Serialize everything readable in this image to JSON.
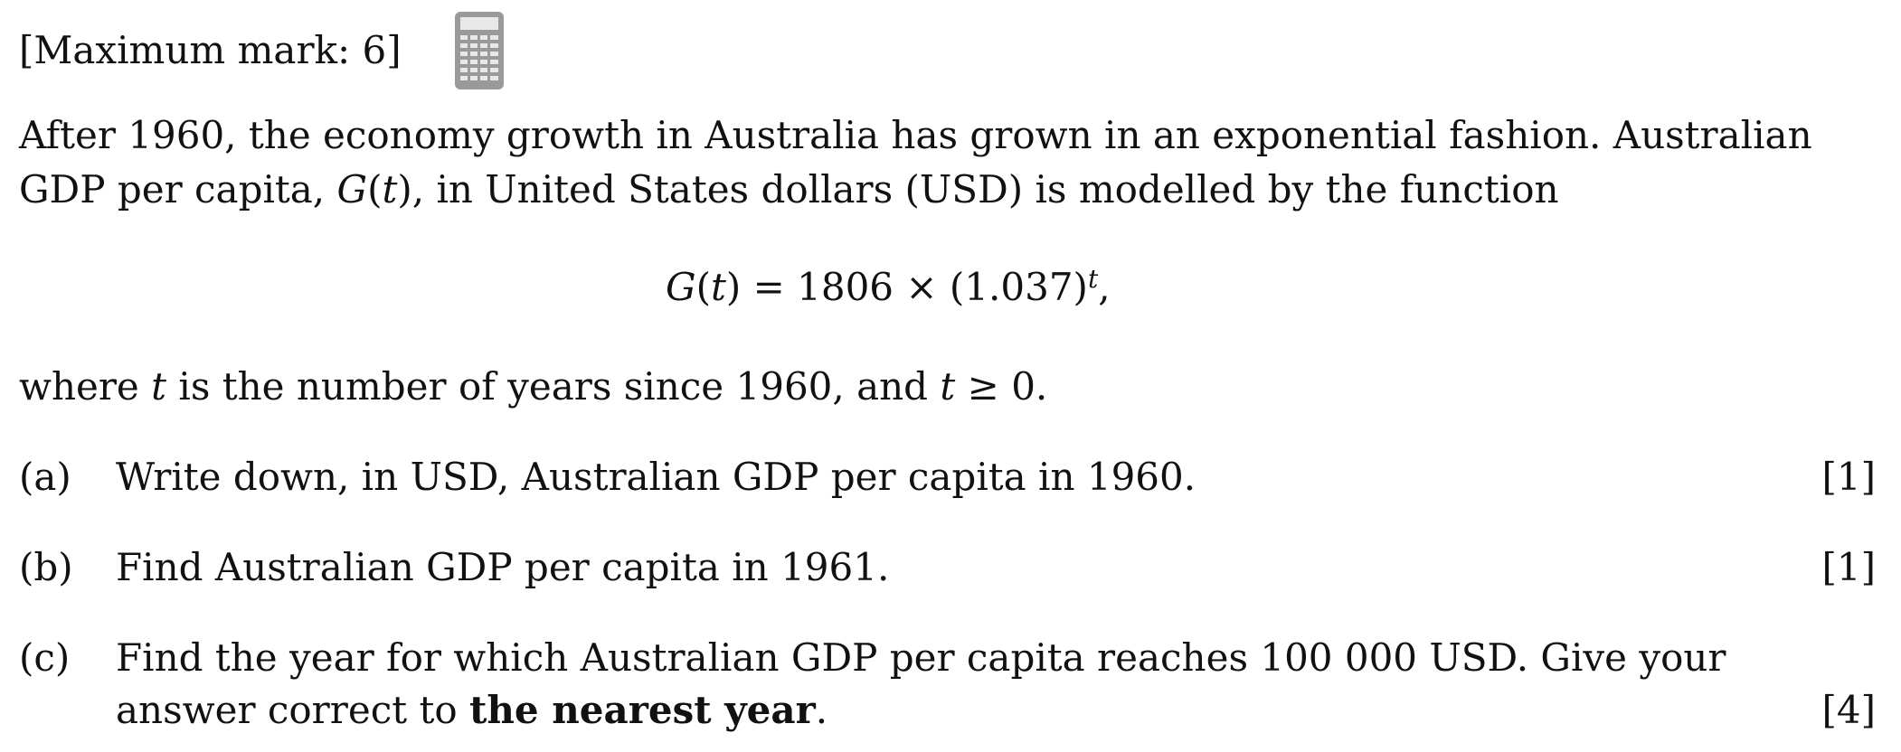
{
  "header": {
    "max_mark": "[Maximum mark: 6]",
    "calculator_icon": "calculator-icon"
  },
  "intro": {
    "line1": "After 1960, the economy growth in Australia has grown in an exponential fashion. Australian",
    "line2_a": "GDP per capita, ",
    "line2_func": "G",
    "line2_var": "(t)",
    "line2_b": ", in United States dollars (USD) is modelled by the function"
  },
  "formula": {
    "lhs_func": "G",
    "lhs_arg": "(t)",
    "equals": " = ",
    "rhs": "1806 × (1.037)",
    "exponent": "t",
    "trail": ","
  },
  "where": {
    "a": "where ",
    "t1": "t",
    "b": " is the number of years since 1960, and ",
    "t2": "t",
    "c": " ≥ 0."
  },
  "parts": [
    {
      "label": "(a)",
      "text": "Write down, in USD, Australian GDP per capita in 1960.",
      "marks": "[1]"
    },
    {
      "label": "(b)",
      "text": "Find Australian GDP per capita in 1961.",
      "marks": "[1]"
    },
    {
      "label": "(c)",
      "text": "Find the year for which Australian GDP per capita reaches 100 000 USD. Give your",
      "text2_a": "answer correct to ",
      "text2_bold": "the nearest year",
      "text2_b": ".",
      "marks": "[4]"
    }
  ]
}
